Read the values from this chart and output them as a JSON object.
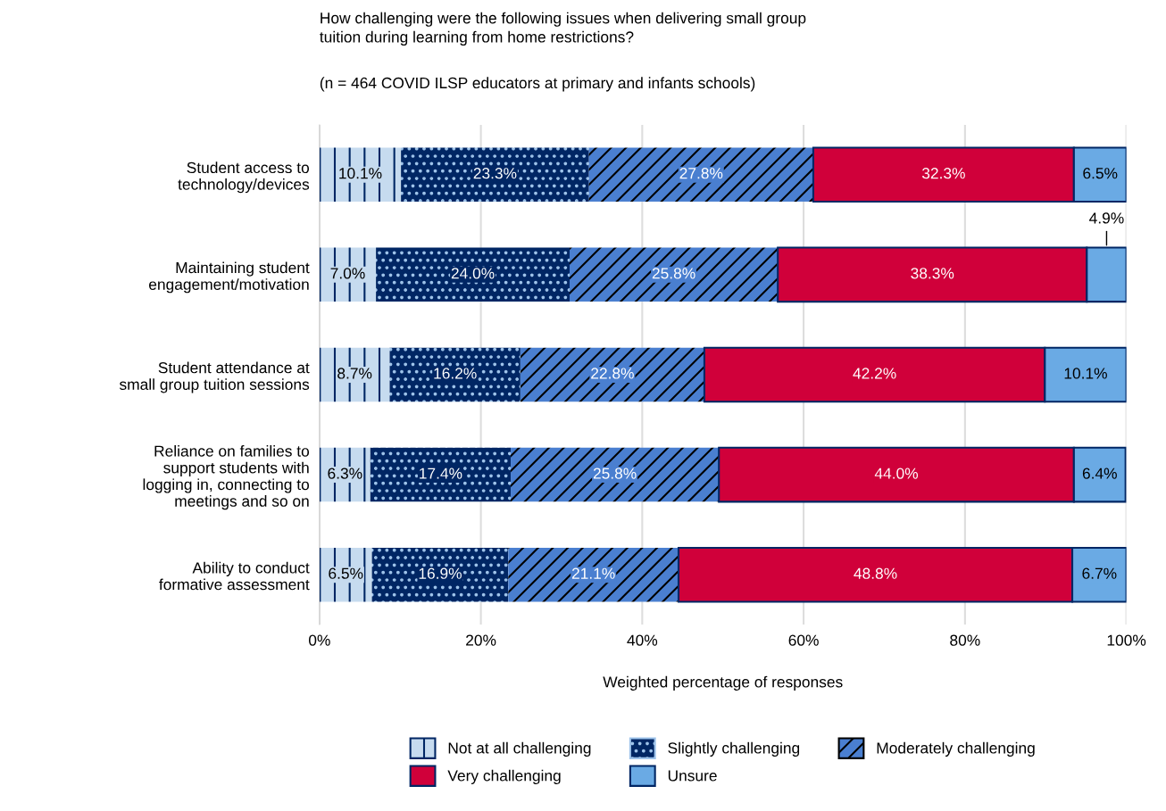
{
  "chart_data": {
    "type": "bar",
    "orientation": "horizontal",
    "stacked": true,
    "title": "How challenging were the following issues when delivering small group\ntuition during learning from home restrictions?",
    "subtitle": "(n = 464 COVID ILSP educators at primary and infants schools)",
    "xlabel": "Weighted percentage of responses",
    "categories": [
      "Student access to\ntechnology/devices",
      "Maintaining student\nengagement/motivation",
      "Student attendance at\nsmall group tuition sessions",
      "Reliance on families to\nsupport students with\nlogging in, connecting to\nmeetings and so on",
      "Ability to conduct\nformative assessment"
    ],
    "series": [
      {
        "name": "Not at all challenging",
        "color": "#c6dbef",
        "values": [
          10.1,
          7.0,
          8.7,
          6.3,
          6.5
        ],
        "value_labels": [
          "10.1%",
          "7.0%",
          "8.7%",
          "6.3%",
          "6.5%"
        ]
      },
      {
        "name": "Slightly challenging",
        "color": "#002664",
        "values": [
          23.3,
          24.0,
          16.2,
          17.4,
          16.9
        ],
        "value_labels": [
          "23.3%",
          "24.0%",
          "16.2%",
          "17.4%",
          "16.9%"
        ]
      },
      {
        "name": "Moderately challenging",
        "color": "#4a7fd0",
        "values": [
          27.8,
          25.8,
          22.8,
          25.8,
          21.1
        ],
        "value_labels": [
          "27.8%",
          "25.8%",
          "22.8%",
          "25.8%",
          "21.1%"
        ]
      },
      {
        "name": "Very challenging",
        "color": "#d0003a",
        "values": [
          32.3,
          38.3,
          42.2,
          44.0,
          48.8
        ],
        "value_labels": [
          "32.3%",
          "38.3%",
          "42.2%",
          "44.0%",
          "48.8%"
        ]
      },
      {
        "name": "Unsure",
        "color": "#6aaae4",
        "values": [
          6.5,
          4.9,
          10.1,
          6.4,
          6.7
        ],
        "value_labels": [
          "6.5%",
          "4.9%",
          "10.1%",
          "6.4%",
          "6.7%"
        ]
      }
    ],
    "xlim": [
      0,
      100
    ],
    "xticks": [
      {
        "value": 0,
        "label": "0%"
      },
      {
        "value": 20,
        "label": "20%"
      },
      {
        "value": 40,
        "label": "40%"
      },
      {
        "value": 60,
        "label": "60%"
      },
      {
        "value": 80,
        "label": "80%"
      },
      {
        "value": 100,
        "label": "100%"
      }
    ],
    "grid": "x",
    "legend": "bottom"
  }
}
